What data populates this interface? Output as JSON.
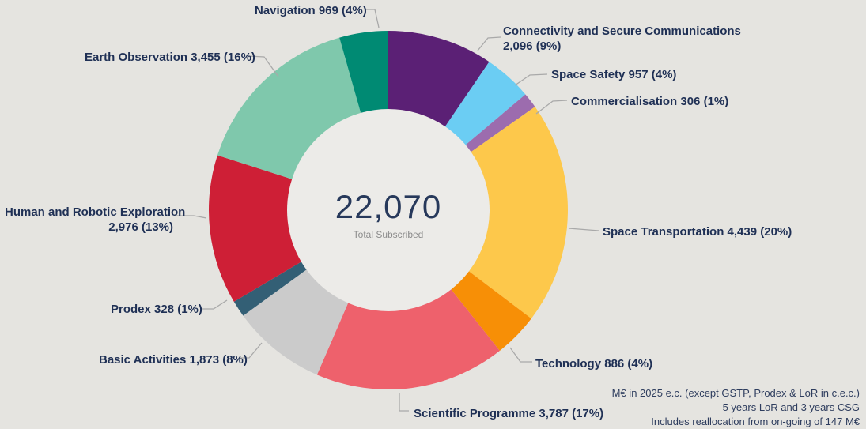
{
  "chart_data": {
    "type": "pie",
    "variant": "donut",
    "direction": "clockwise",
    "start_angle_deg": 0,
    "center": {
      "total_display": "22,070",
      "total_value": 22070,
      "subtitle": "Total Subscribed"
    },
    "unit": "M€",
    "slices": [
      {
        "id": "connectivity",
        "name": "Connectivity and Secure Communications",
        "value": 2096,
        "value_display": "2,096",
        "pct": "9%",
        "color": "#5b2075",
        "label_lines": [
          "Connectivity and Secure Communications",
          "2,096 (9%)"
        ]
      },
      {
        "id": "space-safety",
        "name": "Space Safety",
        "value": 957,
        "value_display": "957",
        "pct": "4%",
        "color": "#6bcdf3",
        "label_lines": [
          "Space Safety 957 (4%)"
        ]
      },
      {
        "id": "commercialisation",
        "name": "Commercialisation",
        "value": 306,
        "value_display": "306",
        "pct": "1%",
        "color": "#9c6cae",
        "label_lines": [
          "Commercialisation 306 (1%)"
        ]
      },
      {
        "id": "space-transportation",
        "name": "Space Transportation",
        "value": 4439,
        "value_display": "4,439",
        "pct": "20%",
        "color": "#fdc84b",
        "label_lines": [
          "Space Transportation 4,439 (20%)"
        ]
      },
      {
        "id": "technology",
        "name": "Technology",
        "value": 886,
        "value_display": "886",
        "pct": "4%",
        "color": "#f78f06",
        "label_lines": [
          "Technology 886 (4%)"
        ]
      },
      {
        "id": "scientific-programme",
        "name": "Scientific Programme",
        "value": 3787,
        "value_display": "3,787",
        "pct": "17%",
        "color": "#ee616c",
        "label_lines": [
          "Scientific Programme 3,787 (17%)"
        ]
      },
      {
        "id": "basic-activities",
        "name": "Basic Activities",
        "value": 1873,
        "value_display": "1,873",
        "pct": "8%",
        "color": "#cbcbcb",
        "label_lines": [
          "Basic Activities 1,873 (8%)"
        ]
      },
      {
        "id": "prodex",
        "name": "Prodex",
        "value": 328,
        "value_display": "328",
        "pct": "1%",
        "color": "#335f75",
        "label_lines": [
          "Prodex 328 (1%)"
        ]
      },
      {
        "id": "human-robotic-exploration",
        "name": "Human and Robotic Exploration",
        "value": 2976,
        "value_display": "2,976",
        "pct": "13%",
        "color": "#ce1f36",
        "label_lines": [
          "Human and Robotic Exploration",
          "2,976 (13%)"
        ]
      },
      {
        "id": "earth-observation",
        "name": "Earth Observation",
        "value": 3455,
        "value_display": "3,455",
        "pct": "16%",
        "color": "#7fc8ac",
        "label_lines": [
          "Earth Observation 3,455 (16%)"
        ]
      },
      {
        "id": "navigation",
        "name": "Navigation",
        "value": 969,
        "value_display": "969",
        "pct": "4%",
        "color": "#008a73",
        "label_lines": [
          "Navigation 969 (4%)"
        ]
      }
    ]
  },
  "footnotes": [
    "M€ in 2025 e.c. (except GSTP, Prodex & LoR in c.e.c.)",
    "5 years LoR and 3 years CSG",
    "Includes reallocation from on-going of 147 M€"
  ],
  "colors": {
    "background": "#e5e4e0",
    "hole": "#ecebe8",
    "label_text": "#1f3055",
    "leader_line": "#a9a9a9",
    "center_text": "#27395b",
    "subtitle_text": "#8c8c8c"
  }
}
